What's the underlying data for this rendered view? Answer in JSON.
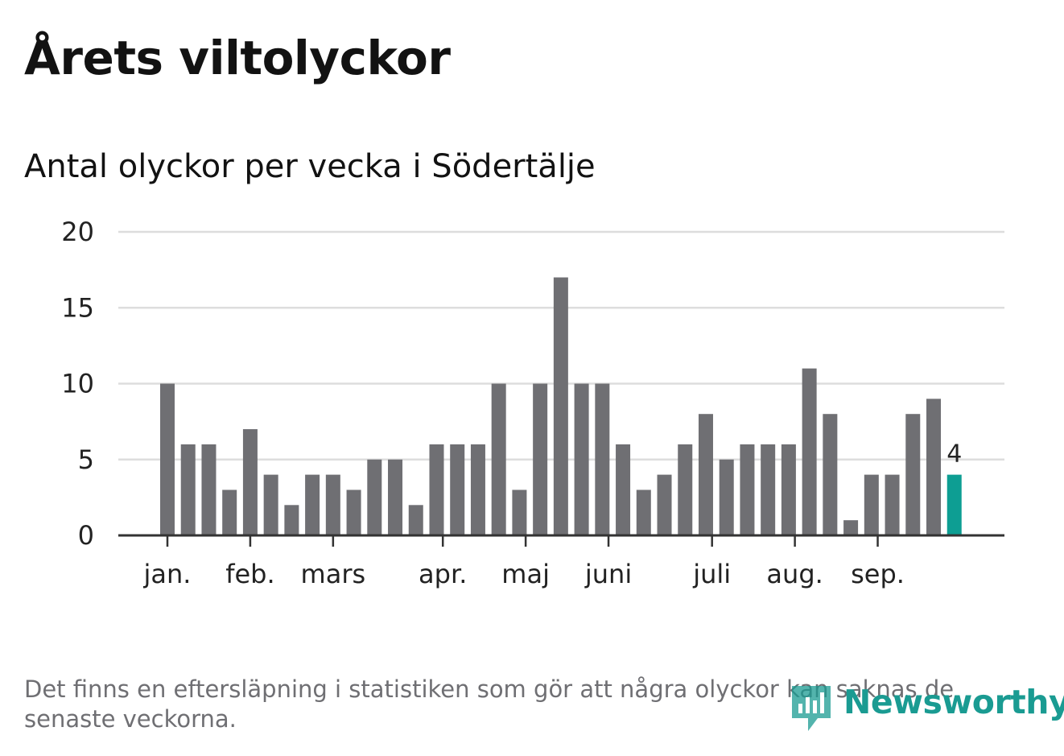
{
  "title": "Årets viltolyckor",
  "subtitle": "Antal olyckor per vecka i Södertälje",
  "footnote": "Det finns en eftersläpning i statistiken som gör att några olyckor kan saknas de senaste veckorna.",
  "logo_text": "Newsworthy",
  "colors": {
    "bar": "#6f6f73",
    "highlight": "#0d9e93",
    "grid": "#dddddd",
    "axis": "#333333",
    "brand": "#1a9b92"
  },
  "chart_data": {
    "type": "bar",
    "title": "Antal olyckor per vecka i Södertälje",
    "xlabel": "",
    "ylabel": "",
    "ylim": [
      0,
      20
    ],
    "yticks": [
      0,
      5,
      10,
      15,
      20
    ],
    "weeks": [
      1,
      2,
      3,
      4,
      5,
      6,
      7,
      8,
      9,
      10,
      11,
      12,
      13,
      14,
      15,
      16,
      17,
      18,
      19,
      20,
      21,
      22,
      23,
      24,
      25,
      26,
      27,
      28,
      29,
      30,
      31,
      32,
      33,
      34,
      35,
      36,
      37,
      38,
      39
    ],
    "values": [
      10,
      6,
      6,
      3,
      7,
      4,
      2,
      4,
      4,
      3,
      5,
      5,
      2,
      6,
      6,
      6,
      10,
      3,
      10,
      17,
      10,
      10,
      6,
      3,
      4,
      6,
      8,
      5,
      6,
      6,
      6,
      11,
      8,
      1,
      4,
      4,
      8,
      9,
      4
    ],
    "highlight_index": 38,
    "highlight_label": "4",
    "month_ticks": [
      {
        "label": "jan.",
        "week": 1.0
      },
      {
        "label": "feb.",
        "week": 5.0
      },
      {
        "label": "mars",
        "week": 9.0
      },
      {
        "label": "apr.",
        "week": 14.3
      },
      {
        "label": "maj",
        "week": 18.3
      },
      {
        "label": "juni",
        "week": 22.3
      },
      {
        "label": "juli",
        "week": 27.3
      },
      {
        "label": "aug.",
        "week": 31.3
      },
      {
        "label": "sep.",
        "week": 35.3
      }
    ]
  }
}
